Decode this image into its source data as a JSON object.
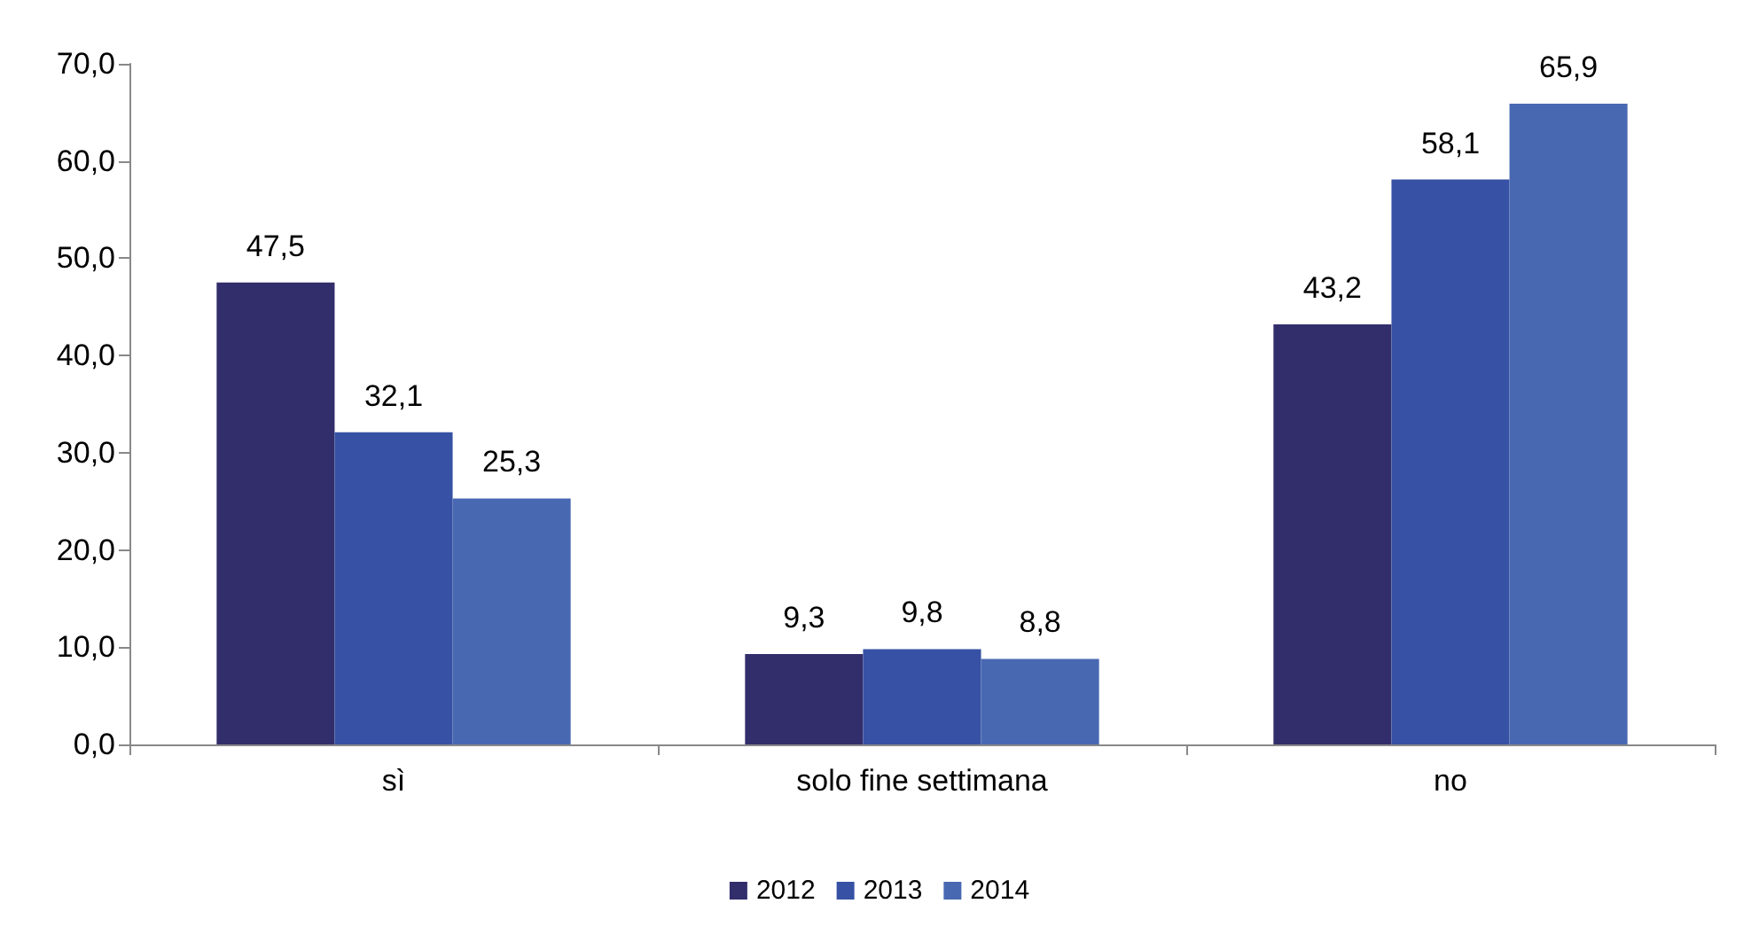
{
  "chart_data": {
    "type": "bar",
    "categories": [
      "sì",
      "solo fine settimana",
      "no"
    ],
    "series": [
      {
        "name": "2012",
        "color": "#322d6b",
        "values": [
          47.5,
          9.3,
          43.2
        ],
        "value_labels": [
          "47,5",
          "9,3",
          "43,2"
        ]
      },
      {
        "name": "2013",
        "color": "#3752a4",
        "values": [
          32.1,
          9.8,
          58.1
        ],
        "value_labels": [
          "32,1",
          "9,8",
          "58,1"
        ]
      },
      {
        "name": "2014",
        "color": "#4868b2",
        "values": [
          25.3,
          8.8,
          65.9
        ],
        "value_labels": [
          "25,3",
          "8,8",
          "65,9"
        ]
      }
    ],
    "ylim": [
      0,
      70
    ],
    "yticks": [
      {
        "value": 0,
        "label": "0,0"
      },
      {
        "value": 10,
        "label": "10,0"
      },
      {
        "value": 20,
        "label": "20,0"
      },
      {
        "value": 30,
        "label": "30,0"
      },
      {
        "value": 40,
        "label": "40,0"
      },
      {
        "value": 50,
        "label": "50,0"
      },
      {
        "value": 60,
        "label": "60,0"
      },
      {
        "value": 70,
        "label": "70,0"
      }
    ],
    "grid": false,
    "legend": "bottom"
  }
}
